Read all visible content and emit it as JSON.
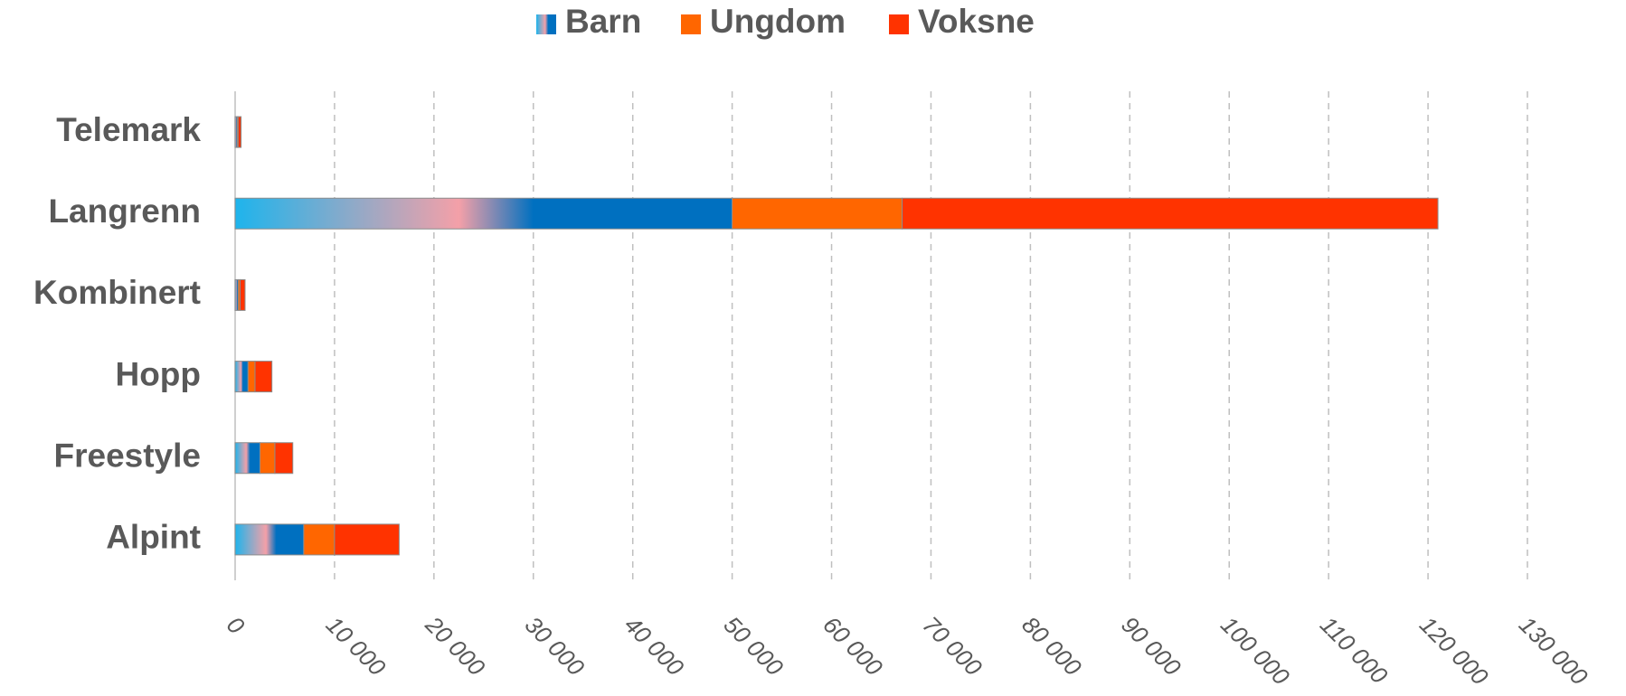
{
  "chart_data": {
    "type": "stacked-bar-horizontal",
    "categories": [
      "Telemark",
      "Langrenn",
      "Kombinert",
      "Hopp",
      "Freestyle",
      "Alpint"
    ],
    "series": [
      {
        "name": "Barn",
        "color": "#0070c0",
        "values": [
          200,
          50000,
          300,
          1300,
          2500,
          6900
        ]
      },
      {
        "name": "Ungdom",
        "color": "#ff6600",
        "values": [
          100,
          17100,
          200,
          700,
          1500,
          3100
        ]
      },
      {
        "name": "Voksne",
        "color": "#ff3300",
        "values": [
          300,
          53900,
          500,
          1700,
          1800,
          6500
        ]
      }
    ],
    "xlim": [
      0,
      130000
    ],
    "xticks": [
      0,
      {
        "value": 10000,
        "label": "10 000"
      },
      {
        "value": 20000,
        "label": "20 000"
      },
      {
        "value": 30000,
        "label": "30 000"
      },
      {
        "value": 40000,
        "label": "40 000"
      },
      {
        "value": 50000,
        "label": "50 000"
      },
      {
        "value": 60000,
        "label": "60 000"
      },
      {
        "value": 70000,
        "label": "70 000"
      },
      {
        "value": 80000,
        "label": "80 000"
      },
      {
        "value": 90000,
        "label": "90 000"
      },
      {
        "value": 100000,
        "label": "100 000"
      },
      {
        "value": 110000,
        "label": "110 000"
      },
      {
        "value": 120000,
        "label": "120 000"
      },
      {
        "value": 130000,
        "label": "130 000"
      }
    ],
    "grid": true
  }
}
